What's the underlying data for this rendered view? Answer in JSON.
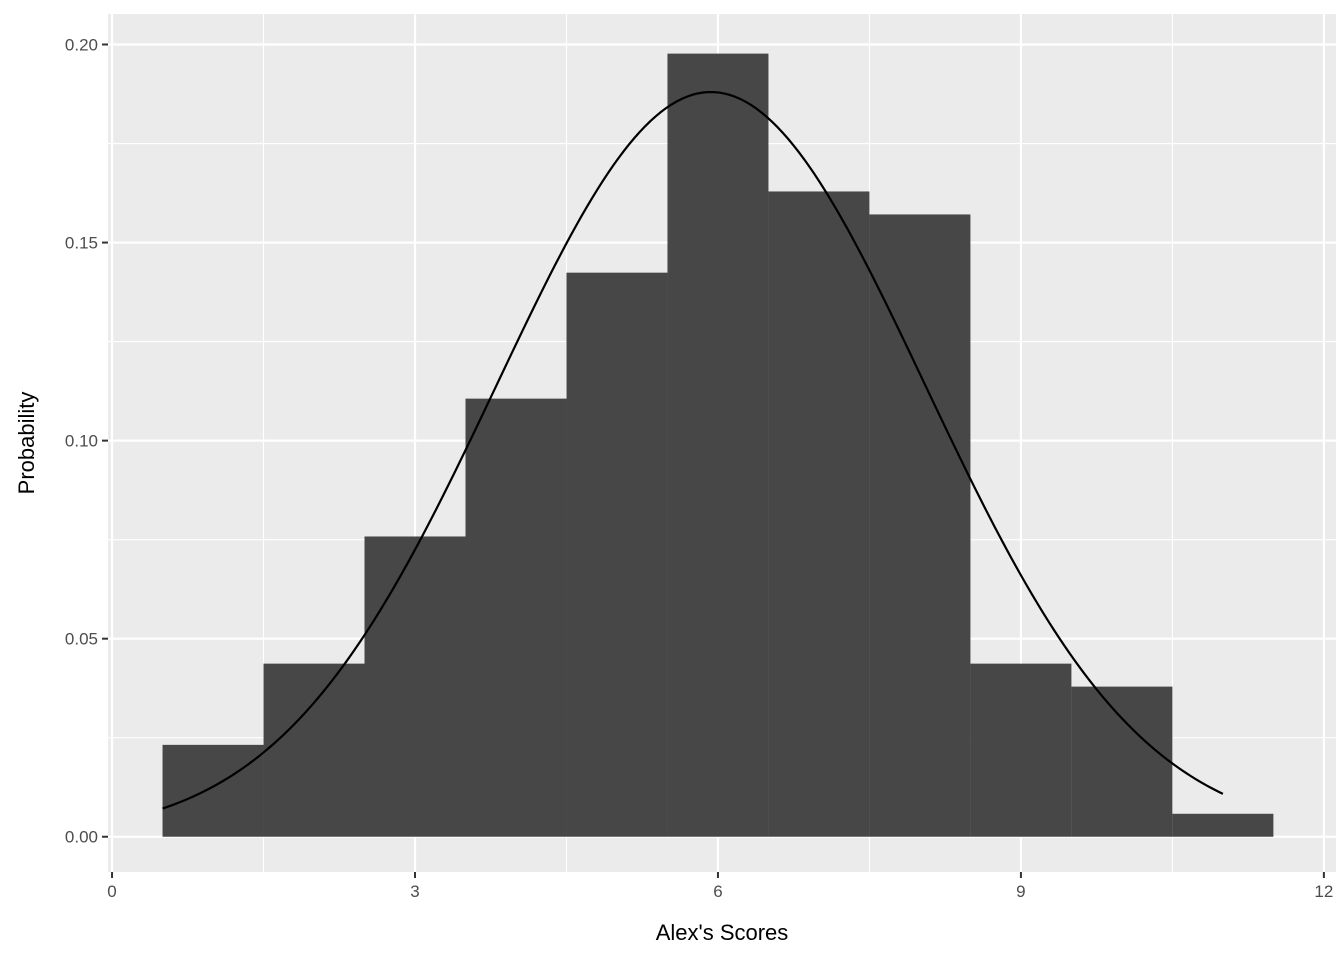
{
  "chart_data": {
    "type": "bar",
    "subtype": "histogram-with-density-curve",
    "title": "",
    "xlabel": "Alex's Scores",
    "ylabel": "Probability",
    "xlim": [
      -0.04,
      12.12
    ],
    "ylim": [
      -0.0089,
      0.2077
    ],
    "x_ticks": [
      0,
      3,
      6,
      9,
      12
    ],
    "x_tick_labels": [
      "0",
      "3",
      "6",
      "9",
      "12"
    ],
    "y_ticks": [
      0,
      0.05,
      0.1,
      0.15,
      0.2
    ],
    "y_tick_labels": [
      "0.00",
      "0.05",
      "0.10",
      "0.15",
      "0.20"
    ],
    "grid": true,
    "bin_width": 1,
    "bins": [
      1,
      2,
      3,
      4,
      5,
      6,
      7,
      8,
      9,
      10,
      11
    ],
    "values": [
      0.0232,
      0.0437,
      0.0758,
      0.1106,
      0.1424,
      0.1977,
      0.1629,
      0.1571,
      0.0437,
      0.0379,
      0.0058
    ],
    "curve": {
      "type": "normal-density",
      "mean": 5.93,
      "sd": 2.122,
      "x_range": [
        0.5,
        11
      ]
    },
    "colors": {
      "panel": "#ebebeb",
      "grid": "#ffffff",
      "bars": "#474747",
      "curve": "#000000"
    }
  }
}
